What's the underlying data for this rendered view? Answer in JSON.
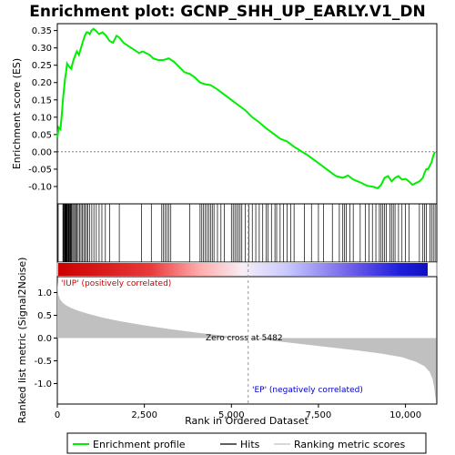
{
  "chart_data": {
    "type": "line",
    "title": "Enrichment plot: GCNP_SHH_UP_EARLY.V1_DN",
    "es_panel": {
      "ylabel": "Enrichment score (ES)",
      "ylim": [
        -0.15,
        0.37
      ],
      "yticks": [
        -0.1,
        -0.05,
        0.0,
        0.05,
        0.1,
        0.15,
        0.2,
        0.25,
        0.3,
        0.35
      ],
      "ytick_labels": [
        "-0.10",
        "-0.05",
        "0.00",
        "0.05",
        "0.10",
        "0.15",
        "0.20",
        "0.25",
        "0.30",
        "0.35"
      ],
      "series": [
        {
          "name": "Enrichment profile",
          "color": "#00ee00",
          "x": [
            0,
            40,
            90,
            130,
            160,
            190,
            220,
            250,
            280,
            310,
            350,
            400,
            450,
            500,
            560,
            620,
            680,
            740,
            790,
            840,
            880,
            930,
            980,
            1040,
            1100,
            1200,
            1300,
            1400,
            1500,
            1600,
            1700,
            1780,
            1900,
            2050,
            2200,
            2350,
            2450,
            2550,
            2650,
            2750,
            2900,
            3050,
            3200,
            3350,
            3500,
            3650,
            3800,
            3950,
            4100,
            4250,
            4400,
            4600,
            4800,
            5000,
            5200,
            5400,
            5600,
            5800,
            6000,
            6200,
            6400,
            6600,
            6800,
            7000,
            7200,
            7400,
            7600,
            7800,
            8000,
            8200,
            8350,
            8500,
            8700,
            8900,
            9050,
            9200,
            9300,
            9400,
            9500,
            9600,
            9700,
            9800,
            9900,
            10000,
            10100,
            10200,
            10300,
            10400,
            10500,
            10550,
            10600,
            10650,
            10700,
            10750,
            10800,
            10850
          ],
          "y": [
            0.04,
            0.07,
            0.065,
            0.11,
            0.15,
            0.18,
            0.21,
            0.23,
            0.255,
            0.25,
            0.245,
            0.24,
            0.26,
            0.275,
            0.29,
            0.28,
            0.3,
            0.32,
            0.335,
            0.345,
            0.345,
            0.34,
            0.35,
            0.355,
            0.35,
            0.34,
            0.345,
            0.335,
            0.32,
            0.315,
            0.335,
            0.33,
            0.315,
            0.305,
            0.295,
            0.285,
            0.29,
            0.285,
            0.28,
            0.27,
            0.265,
            0.265,
            0.27,
            0.26,
            0.245,
            0.23,
            0.225,
            0.215,
            0.2,
            0.195,
            0.193,
            0.18,
            0.165,
            0.15,
            0.135,
            0.12,
            0.1,
            0.085,
            0.068,
            0.053,
            0.038,
            0.03,
            0.015,
            0.002,
            -0.01,
            -0.025,
            -0.04,
            -0.055,
            -0.07,
            -0.075,
            -0.068,
            -0.08,
            -0.088,
            -0.098,
            -0.1,
            -0.105,
            -0.095,
            -0.075,
            -0.07,
            -0.085,
            -0.075,
            -0.07,
            -0.08,
            -0.078,
            -0.085,
            -0.095,
            -0.09,
            -0.085,
            -0.075,
            -0.06,
            -0.05,
            -0.05,
            -0.04,
            -0.03,
            -0.01,
            0.0
          ]
        }
      ]
    },
    "hits_panel": {
      "hit_positions": [
        25,
        160,
        180,
        200,
        215,
        230,
        245,
        255,
        270,
        285,
        300,
        320,
        335,
        350,
        370,
        390,
        410,
        440,
        470,
        500,
        530,
        560,
        600,
        640,
        680,
        720,
        760,
        800,
        840,
        880,
        930,
        990,
        1050,
        1120,
        1200,
        1280,
        1380,
        1500,
        1780,
        2420,
        2700,
        3000,
        3050,
        3100,
        3150,
        3200,
        3260,
        3800,
        4100,
        4150,
        4200,
        4250,
        4300,
        4350,
        4400,
        4450,
        4500,
        4600,
        4700,
        4800,
        5000,
        5050,
        5100,
        5150,
        5200,
        5250,
        5300,
        5400,
        5500,
        5600,
        5700,
        5800,
        5900,
        6000,
        6050,
        6150,
        6250,
        6300,
        6400,
        6500,
        6600,
        6700,
        6800,
        7100,
        7300,
        7500,
        7650,
        7900,
        8100,
        8200,
        8250,
        8300,
        8400,
        8500,
        8700,
        8850,
        8950,
        9050,
        9150,
        9250,
        9300,
        9350,
        9400,
        9450,
        9550,
        9600,
        9650,
        9700,
        9800,
        9900,
        10000,
        10100,
        10400,
        10500,
        10550,
        10600,
        10700,
        10750,
        10800,
        10850
      ]
    },
    "metric_panel": {
      "ylabel": "Ranked list metric (Signal2Noise)",
      "xlabel": "Rank in Ordered Dataset",
      "ylim": [
        -1.45,
        1.35
      ],
      "yticks": [
        -1.0,
        -0.5,
        0.0,
        0.5,
        1.0
      ],
      "ytick_labels": [
        "-1.0",
        "-0.5",
        "0.0",
        "0.5",
        "1.0"
      ],
      "xlim": [
        0,
        10900
      ],
      "xticks": [
        0,
        2500,
        5000,
        7500,
        10000
      ],
      "xtick_labels": [
        "0",
        "2,500",
        "5,000",
        "7,500",
        "10,000"
      ],
      "zero_cross": 5482,
      "zero_cross_label": "Zero cross at 5482",
      "pos_label": "'IUP' (positively correlated)",
      "neg_label": "'EP' (negatively correlated)",
      "x": [
        0,
        30,
        80,
        150,
        250,
        400,
        600,
        900,
        1300,
        1800,
        2500,
        3200,
        4000,
        4800,
        5482,
        6200,
        7000,
        7800,
        8600,
        9300,
        9900,
        10300,
        10550,
        10700,
        10780,
        10830,
        10860,
        10880
      ],
      "y": [
        1.25,
        0.95,
        0.85,
        0.78,
        0.72,
        0.66,
        0.6,
        0.53,
        0.45,
        0.37,
        0.28,
        0.2,
        0.12,
        0.05,
        0.0,
        -0.06,
        -0.13,
        -0.2,
        -0.27,
        -0.34,
        -0.42,
        -0.52,
        -0.62,
        -0.75,
        -0.9,
        -1.1,
        -1.3,
        -1.4
      ]
    },
    "legend": {
      "placement": "bottom",
      "entries": [
        {
          "label": "Enrichment profile",
          "color": "#00ee00"
        },
        {
          "label": "Hits",
          "color": "#000000"
        },
        {
          "label": "Ranking metric scores",
          "color": "#c0c0c0"
        }
      ]
    }
  }
}
